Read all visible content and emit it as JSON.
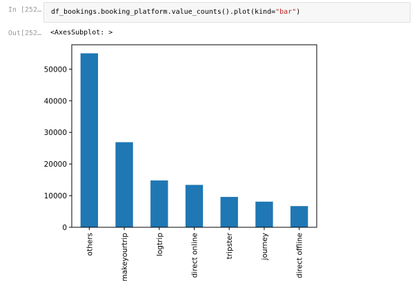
{
  "notebook": {
    "in_prompt": "In [252…",
    "out_prompt": "Out[252…",
    "code_prefix": "df_bookings.booking_platform.value_counts().plot(kind=",
    "code_string": "\"bar\"",
    "code_suffix": ")",
    "output_text": "<AxesSubplot: >"
  },
  "chart_data": {
    "type": "bar",
    "categories": [
      "others",
      "makeyourtrip",
      "logtrip",
      "direct online",
      "tripster",
      "journey",
      "direct offline"
    ],
    "values": [
      55000,
      26900,
      14800,
      13400,
      9600,
      8100,
      6700
    ],
    "yticks": [
      0,
      10000,
      20000,
      30000,
      40000,
      50000
    ],
    "ylim": [
      0,
      57700
    ],
    "title": "",
    "xlabel": "",
    "ylabel": "",
    "bar_color": "#1f77b4",
    "grid": false
  }
}
